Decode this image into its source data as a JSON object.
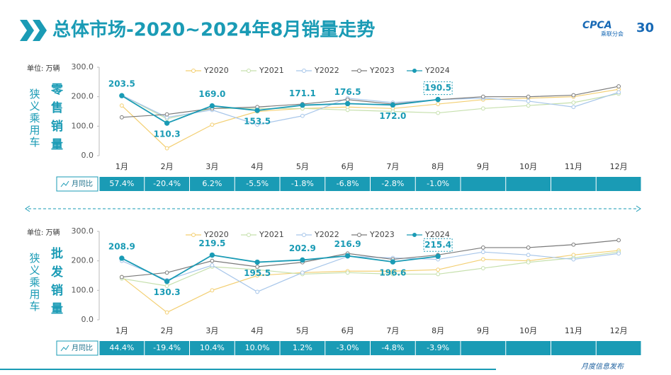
{
  "title": "总体市场-2020~2024年8月销量走势",
  "logo": {
    "brand": "CPCA",
    "org": "乘联分会",
    "anniv": "30"
  },
  "footer": "月度信息发布",
  "chart_data": [
    {
      "type": "line",
      "side_label": "狭义乘用车",
      "title": "零售销量",
      "unit": "单位: 万辆",
      "categories": [
        "1月",
        "2月",
        "3月",
        "4月",
        "5月",
        "6月",
        "7月",
        "8月",
        "9月",
        "10月",
        "11月",
        "12月"
      ],
      "ylim": [
        0,
        300
      ],
      "yticks": [
        {
          "value": 0,
          "label": "0.0"
        },
        {
          "value": 100,
          "label": "100.0"
        },
        {
          "value": 200,
          "label": "200.0"
        },
        {
          "value": 300,
          "label": "300.0"
        }
      ],
      "grid": false,
      "series": [
        {
          "name": "Y2020",
          "color": "#f3cf72",
          "values": [
            170,
            25,
            105,
            150,
            160,
            165,
            160,
            175,
            190,
            195,
            200,
            225
          ]
        },
        {
          "name": "Y2021",
          "color": "#c6e0ad",
          "values": [
            205,
            125,
            160,
            160,
            160,
            155,
            150,
            145,
            160,
            170,
            180,
            210
          ]
        },
        {
          "name": "Y2022",
          "color": "#a7c6ea",
          "values": [
            205,
            130,
            155,
            105,
            135,
            195,
            180,
            190,
            195,
            185,
            165,
            215
          ]
        },
        {
          "name": "Y2023",
          "color": "#7a7a7a",
          "values": [
            130,
            140,
            160,
            165,
            175,
            190,
            175,
            190,
            200,
            200,
            205,
            235
          ]
        },
        {
          "name": "Y2024",
          "color": "#1a9bb5",
          "values": [
            203.5,
            110.3,
            169.0,
            153.5,
            171.1,
            176.5,
            172.0,
            190.5,
            null,
            null,
            null,
            null
          ],
          "value_labels": [
            "203.5",
            "110.3",
            "169.0",
            "153.5",
            "171.1",
            "176.5",
            "172.0",
            "190.5",
            null,
            null,
            null,
            null
          ]
        }
      ],
      "mom_label": "月同比",
      "mom_values": [
        "57.4%",
        "-20.4%",
        "6.2%",
        "-5.5%",
        "-1.8%",
        "-6.8%",
        "-2.8%",
        "-1.0%"
      ]
    },
    {
      "type": "line",
      "side_label": "狭义乘用车",
      "title": "批发销量",
      "unit": "单位: 万辆",
      "categories": [
        "1月",
        "2月",
        "3月",
        "4月",
        "5月",
        "6月",
        "7月",
        "8月",
        "9月",
        "10月",
        "11月",
        "12月"
      ],
      "ylim": [
        0,
        300
      ],
      "yticks": [
        {
          "value": 0,
          "label": "0.0"
        },
        {
          "value": 100,
          "label": "100.0"
        },
        {
          "value": 200,
          "label": "200.0"
        },
        {
          "value": 300,
          "label": "300.0"
        }
      ],
      "grid": false,
      "series": [
        {
          "name": "Y2020",
          "color": "#f3cf72",
          "values": [
            145,
            25,
            100,
            150,
            160,
            165,
            165,
            170,
            205,
            200,
            220,
            235
          ]
        },
        {
          "name": "Y2021",
          "color": "#c6e0ad",
          "values": [
            140,
            115,
            180,
            170,
            155,
            160,
            155,
            155,
            175,
            195,
            210,
            230
          ]
        },
        {
          "name": "Y2022",
          "color": "#a7c6ea",
          "values": [
            200,
            135,
            185,
            95,
            160,
            215,
            210,
            205,
            230,
            220,
            205,
            225
          ]
        },
        {
          "name": "Y2023",
          "color": "#7a7a7a",
          "values": [
            145,
            160,
            200,
            180,
            195,
            225,
            205,
            220,
            245,
            245,
            255,
            270
          ]
        },
        {
          "name": "Y2024",
          "color": "#1a9bb5",
          "values": [
            208.9,
            130.3,
            219.5,
            195.5,
            202.9,
            216.9,
            196.6,
            215.4,
            null,
            null,
            null,
            null
          ],
          "value_labels": [
            "208.9",
            "130.3",
            "219.5",
            "195.5",
            "202.9",
            "216.9",
            "196.6",
            "215.4",
            null,
            null,
            null,
            null
          ]
        }
      ],
      "mom_label": "月同比",
      "mom_values": [
        "44.4%",
        "-19.4%",
        "10.4%",
        "10.0%",
        "1.2%",
        "-3.0%",
        "-4.8%",
        "-3.9%"
      ]
    }
  ]
}
